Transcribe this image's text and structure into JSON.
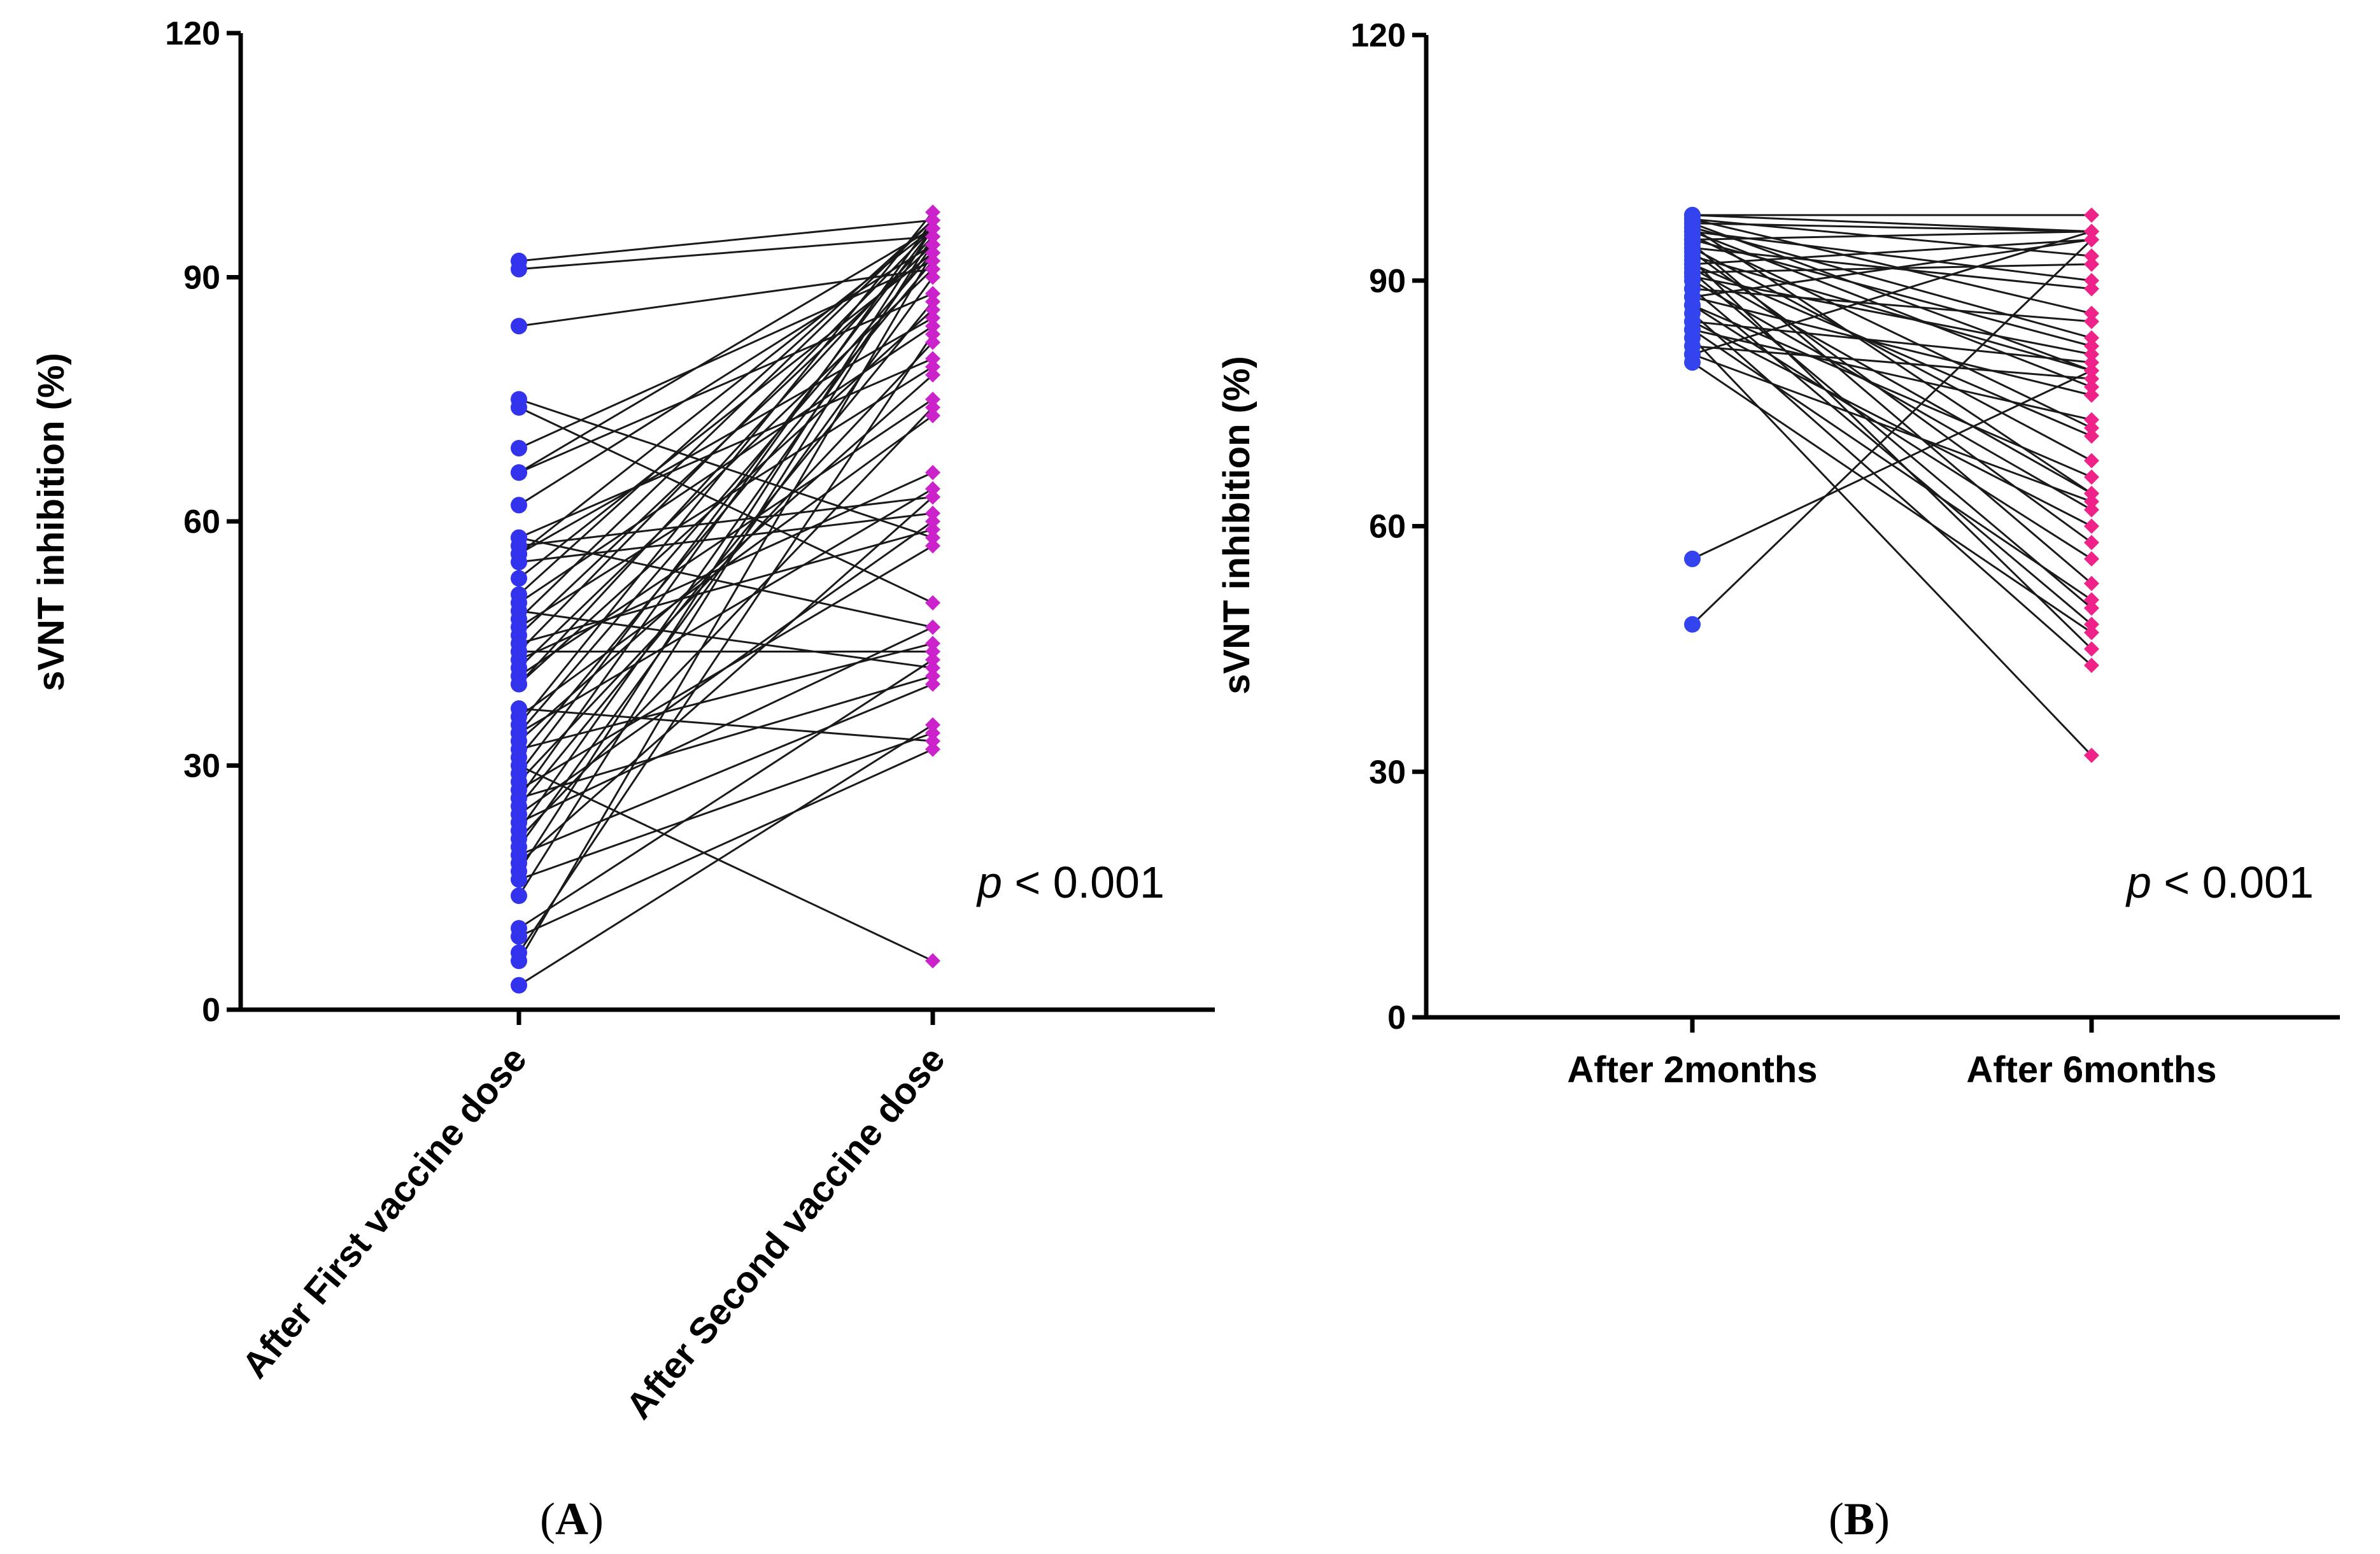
{
  "chart_data": [
    {
      "type": "scatter",
      "subtype": "paired-points",
      "panel_label": "A",
      "categories": [
        "After First vaccine dose",
        "After Second vaccine dose"
      ],
      "ylabel": "sVNT inhibition  (%)",
      "xlabel": "",
      "ylim": [
        0,
        120
      ],
      "yticks": [
        0,
        30,
        60,
        90,
        120
      ],
      "annotation": {
        "p_symbol": "p",
        "text": " < 0.001"
      },
      "series_colors": [
        "#3333ee",
        "#cc22cc"
      ],
      "marker_shapes": [
        "circle",
        "diamond"
      ],
      "pairs": [
        [
          92,
          97
        ],
        [
          91,
          95
        ],
        [
          84,
          91
        ],
        [
          75,
          58
        ],
        [
          74,
          50
        ],
        [
          69,
          92
        ],
        [
          66,
          96
        ],
        [
          66,
          88
        ],
        [
          62,
          94
        ],
        [
          58,
          47
        ],
        [
          58,
          80
        ],
        [
          57,
          63
        ],
        [
          56,
          96
        ],
        [
          56,
          85
        ],
        [
          55,
          61
        ],
        [
          53,
          93
        ],
        [
          51,
          97
        ],
        [
          50,
          84
        ],
        [
          49,
          42
        ],
        [
          48,
          97
        ],
        [
          47,
          79
        ],
        [
          46,
          94
        ],
        [
          45,
          59
        ],
        [
          44,
          44
        ],
        [
          44,
          96
        ],
        [
          43,
          66
        ],
        [
          42,
          91
        ],
        [
          41,
          75
        ],
        [
          40,
          95
        ],
        [
          40,
          86
        ],
        [
          37,
          33
        ],
        [
          36,
          73
        ],
        [
          35,
          98
        ],
        [
          34,
          64
        ],
        [
          34,
          93
        ],
        [
          33,
          78
        ],
        [
          32,
          45
        ],
        [
          31,
          92
        ],
        [
          30,
          6
        ],
        [
          29,
          96
        ],
        [
          28,
          82
        ],
        [
          27,
          57
        ],
        [
          26,
          41
        ],
        [
          26,
          97
        ],
        [
          25,
          87
        ],
        [
          24,
          60
        ],
        [
          23,
          47
        ],
        [
          22,
          94
        ],
        [
          21,
          74
        ],
        [
          20,
          90
        ],
        [
          19,
          40
        ],
        [
          18,
          63
        ],
        [
          17,
          96
        ],
        [
          16,
          34
        ],
        [
          14,
          95
        ],
        [
          10,
          43
        ],
        [
          9,
          32
        ],
        [
          7,
          83
        ],
        [
          6,
          93
        ],
        [
          3,
          35
        ]
      ]
    },
    {
      "type": "scatter",
      "subtype": "paired-points",
      "panel_label": "B",
      "categories": [
        "After 2months",
        "After 6months"
      ],
      "ylabel": "sVNT inhibition  (%)",
      "xlabel": "",
      "ylim": [
        0,
        120
      ],
      "yticks": [
        0,
        30,
        60,
        90,
        120
      ],
      "annotation": {
        "p_symbol": "p",
        "text": " < 0.001"
      },
      "series_colors": [
        "#3344ee",
        "#ee2288"
      ],
      "marker_shapes": [
        "circle",
        "diamond"
      ],
      "pairs": [
        [
          98,
          98
        ],
        [
          98,
          96
        ],
        [
          97.5,
          93
        ],
        [
          97.5,
          86
        ],
        [
          97,
          79
        ],
        [
          97,
          96
        ],
        [
          96.5,
          83
        ],
        [
          96.5,
          64
        ],
        [
          96,
          90
        ],
        [
          96,
          77
        ],
        [
          95.5,
          72
        ],
        [
          95,
          96
        ],
        [
          95,
          82
        ],
        [
          94.5,
          53
        ],
        [
          94,
          68
        ],
        [
          94,
          89
        ],
        [
          93.5,
          58
        ],
        [
          93,
          79
        ],
        [
          92.5,
          45
        ],
        [
          92,
          95
        ],
        [
          92,
          71
        ],
        [
          91.5,
          64
        ],
        [
          91,
          50
        ],
        [
          91,
          92
        ],
        [
          90.5,
          81
        ],
        [
          90,
          62
        ],
        [
          89,
          85
        ],
        [
          89,
          48
        ],
        [
          88,
          76
        ],
        [
          88,
          95
        ],
        [
          87,
          56
        ],
        [
          87,
          66
        ],
        [
          86,
          43
        ],
        [
          85,
          80
        ],
        [
          85,
          60
        ],
        [
          84,
          73
        ],
        [
          84,
          51
        ],
        [
          83,
          32
        ],
        [
          82,
          78
        ],
        [
          81,
          63
        ],
        [
          81,
          96
        ],
        [
          80,
          47
        ],
        [
          56,
          79
        ],
        [
          48,
          95
        ]
      ]
    }
  ]
}
